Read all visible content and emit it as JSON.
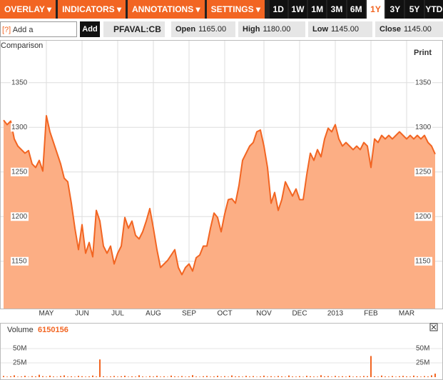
{
  "toolbar": {
    "menus": [
      "OVERLAY",
      "INDICATORS",
      "ANNOTATIONS",
      "SETTINGS"
    ],
    "ranges": [
      "1D",
      "1W",
      "1M",
      "3M",
      "6M",
      "1Y",
      "3Y",
      "5Y",
      "YTD"
    ],
    "active_range": 5
  },
  "comparison": {
    "help": "[?]",
    "placeholder": "Add a Comparison",
    "button": "Add"
  },
  "quote": {
    "symbol": "PFAVAL:CB",
    "open_label": "Open",
    "open": "1165.00",
    "high_label": "High",
    "high": "1180.00",
    "low_label": "Low",
    "low": "1145.00",
    "close_label": "Close",
    "close": "1145.00"
  },
  "print": "Print",
  "chart_data": [
    {
      "type": "area",
      "line_color": "#f26522",
      "fill_color": "#fcae84",
      "grid": true,
      "values": [
        1308,
        1303,
        1307,
        1287,
        1279,
        1275,
        1271,
        1274,
        1259,
        1255,
        1263,
        1251,
        1313,
        1295,
        1283,
        1271,
        1259,
        1243,
        1239,
        1215,
        1187,
        1163,
        1191,
        1159,
        1171,
        1155,
        1207,
        1195,
        1167,
        1159,
        1167,
        1147,
        1159,
        1167,
        1199,
        1187,
        1195,
        1179,
        1175,
        1183,
        1195,
        1209,
        1187,
        1163,
        1143,
        1147,
        1151,
        1157,
        1163,
        1143,
        1135,
        1143,
        1147,
        1139,
        1154,
        1157,
        1167,
        1167,
        1187,
        1204,
        1199,
        1183,
        1203,
        1219,
        1220,
        1215,
        1235,
        1263,
        1271,
        1279,
        1283,
        1295,
        1297,
        1279,
        1255,
        1215,
        1227,
        1207,
        1219,
        1239,
        1231,
        1223,
        1231,
        1219,
        1219,
        1247,
        1271,
        1263,
        1275,
        1267,
        1287,
        1299,
        1295,
        1303,
        1287,
        1279,
        1283,
        1279,
        1275,
        1279,
        1275,
        1283,
        1279,
        1255,
        1287,
        1283,
        1291,
        1287,
        1291,
        1287,
        1291,
        1295,
        1291,
        1287,
        1291,
        1287,
        1291,
        1287,
        1291,
        1283,
        1279,
        1270
      ],
      "xlim": [
        0,
        121
      ],
      "xticks": [
        {
          "value": 12,
          "label": "MAY"
        },
        {
          "value": 22,
          "label": "JUN"
        },
        {
          "value": 32,
          "label": "JUL"
        },
        {
          "value": 42,
          "label": "AUG"
        },
        {
          "value": 52,
          "label": "SEP"
        },
        {
          "value": 62,
          "label": "OCT"
        },
        {
          "value": 73,
          "label": "NOV"
        },
        {
          "value": 83,
          "label": "DEC"
        },
        {
          "value": 93,
          "label": "2013"
        },
        {
          "value": 103,
          "label": "FEB"
        },
        {
          "value": 113,
          "label": "MAR"
        }
      ],
      "ylim": [
        1097,
        1397
      ],
      "yticks": [
        1150,
        1200,
        1250,
        1300,
        1350
      ]
    },
    {
      "type": "bar",
      "label": "Volume",
      "volume": 6150156,
      "color": "#f26522",
      "values": [
        2100000,
        900000,
        1500000,
        3200000,
        800000,
        1100000,
        2400000,
        600000,
        1800000,
        1300000,
        4200000,
        1700000,
        900000,
        2600000,
        1200000,
        700000,
        1900000,
        3100000,
        1000000,
        1400000,
        800000,
        2200000,
        1600000,
        900000,
        1300000,
        2800000,
        1100000,
        31000000,
        1500000,
        700000,
        1200000,
        2000000,
        900000,
        1600000,
        2500000,
        800000,
        1400000,
        1000000,
        3300000,
        1200000,
        700000,
        1800000,
        1100000,
        2300000,
        900000,
        1500000,
        600000,
        2700000,
        1300000,
        1000000,
        1900000,
        800000,
        1400000,
        3500000,
        1100000,
        700000,
        1600000,
        2100000,
        900000,
        1300000,
        2400000,
        1000000,
        1700000,
        800000,
        3000000,
        1200000,
        1500000,
        900000,
        2200000,
        1100000,
        1800000,
        700000,
        1300000,
        2600000,
        1000000,
        1600000,
        900000,
        2000000,
        1400000,
        800000,
        2900000,
        1200000,
        1000000,
        1700000,
        700000,
        2300000,
        1500000,
        1100000,
        900000,
        3400000,
        1300000,
        1800000,
        800000,
        2100000,
        1200000,
        1600000,
        1000000,
        2500000,
        900000,
        1400000,
        1100000,
        2000000,
        1700000,
        37000000,
        1500000,
        900000,
        2800000,
        1200000,
        1000000,
        1900000,
        800000,
        1600000,
        2200000,
        1300000,
        1000000,
        2700000,
        1400000,
        900000,
        1800000,
        1200000,
        3200000,
        6150156
      ],
      "xlim": [
        0,
        121
      ],
      "ylim": [
        0,
        77500000
      ],
      "yticks": [
        {
          "value": 25000000,
          "label": "25M"
        },
        {
          "value": 50000000,
          "label": "50M"
        }
      ]
    }
  ]
}
